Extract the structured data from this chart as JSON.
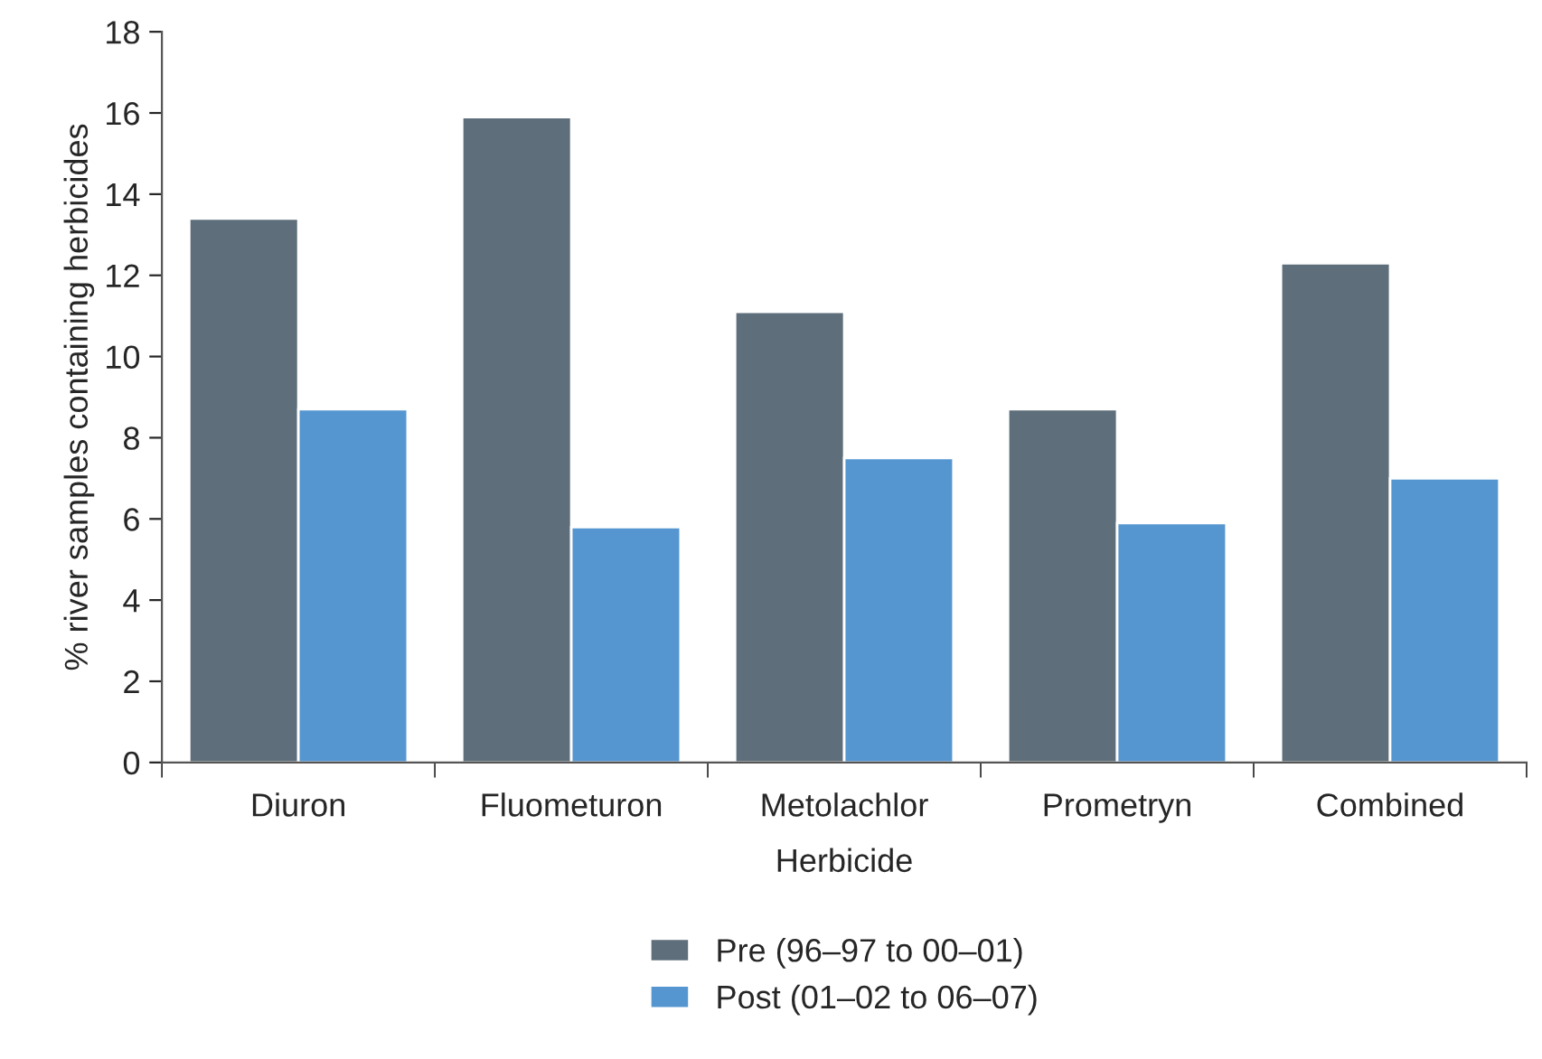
{
  "chart_data": {
    "type": "bar",
    "xlabel": "Herbicide",
    "ylabel": "% river samples containing herbicides",
    "categories": [
      "Diuron",
      "Fluometuron",
      "Metolachlor",
      "Prometryn",
      "Combined"
    ],
    "series": [
      {
        "name": "Pre (96–97 to 00–01)",
        "color": "#5e6e7a",
        "values": [
          13.4,
          15.9,
          11.1,
          8.7,
          12.3
        ]
      },
      {
        "name": "Post (01–02 to 06–07)",
        "color": "#5596d0",
        "values": [
          8.7,
          5.8,
          7.5,
          5.9,
          7.0
        ]
      }
    ],
    "ylim": [
      0,
      18
    ],
    "yticks": [
      0,
      2,
      4,
      6,
      8,
      10,
      12,
      14,
      16,
      18
    ],
    "grid": false,
    "legend": "bottom"
  }
}
